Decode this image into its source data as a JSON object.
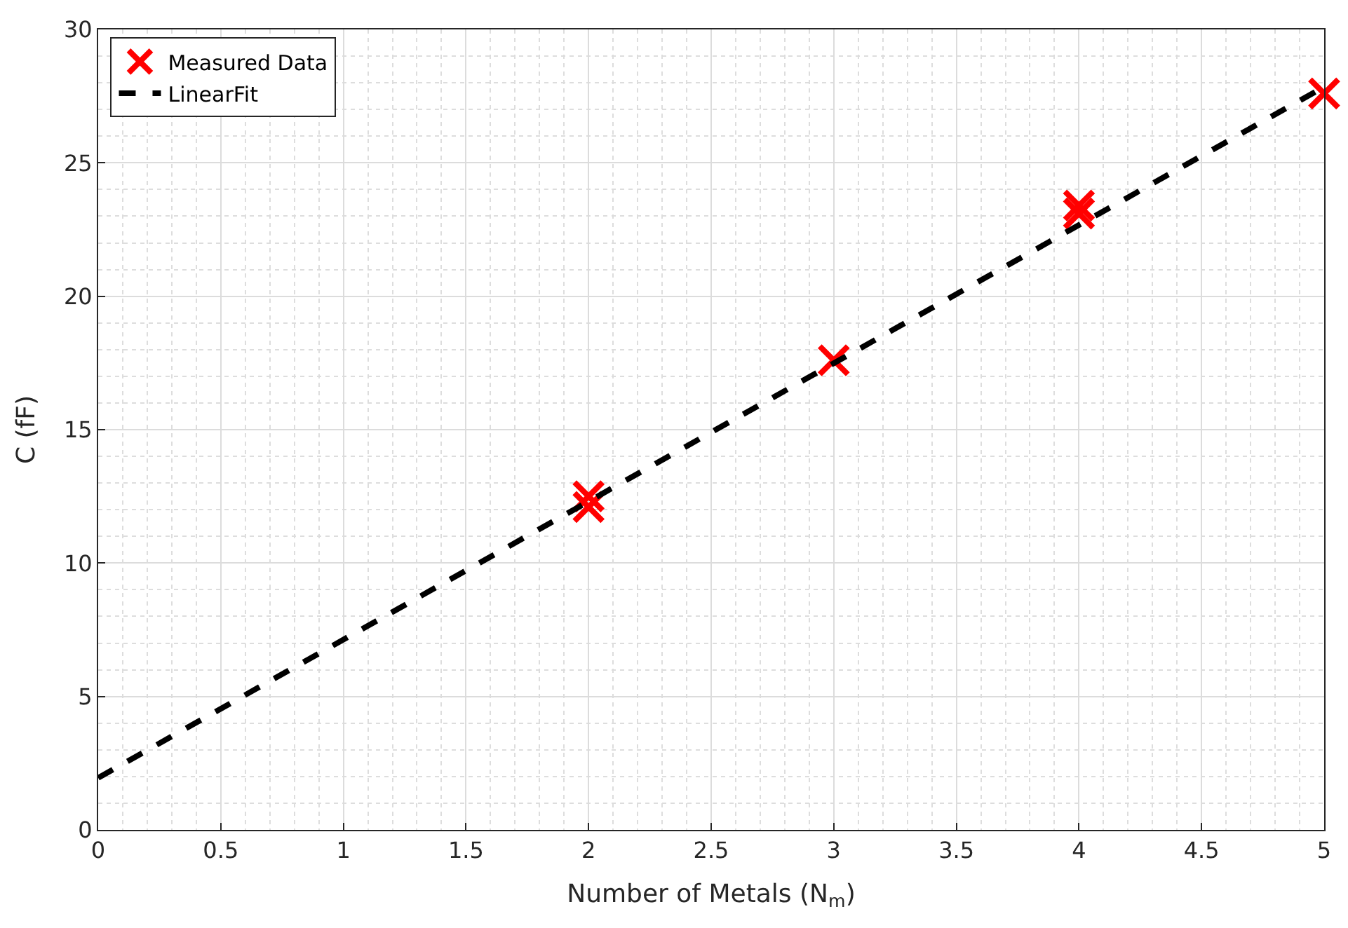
{
  "chart_data": {
    "type": "scatter",
    "xlabel": "Number of Metals (N$_{m}$)",
    "ylabel": "C (fF)",
    "xlim": [
      0,
      5
    ],
    "xticks": [
      0,
      0.5,
      1,
      1.5,
      2,
      2.5,
      3,
      3.5,
      4,
      4.5,
      5
    ],
    "ylim": [
      0,
      30
    ],
    "yticks": [
      0,
      5,
      10,
      15,
      20,
      25,
      30
    ],
    "grid": true,
    "legend": "top left",
    "series": [
      {
        "name": "Measured Data",
        "marker": "cross",
        "color": "#ff0000",
        "x": [
          2,
          2,
          3,
          4,
          4,
          5
        ],
        "values": [
          12.5,
          12.1,
          17.6,
          23.4,
          23.1,
          27.6
        ]
      },
      {
        "name": "LinearFit",
        "type": "line",
        "marker": "none",
        "line_style": "dashed",
        "color": "#000000",
        "x": [
          0,
          5
        ],
        "values": [
          1.95,
          27.85
        ]
      }
    ]
  }
}
